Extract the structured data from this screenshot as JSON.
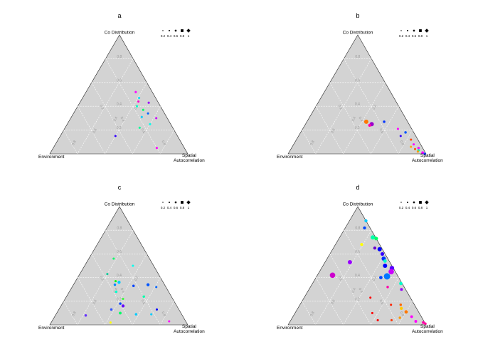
{
  "chart_data": [
    {
      "type": "scatter",
      "title": "a",
      "vertex_labels": {
        "top": "Co Distribution",
        "left": "Environment",
        "right_line1": "Spatial",
        "right_line2": "Autocorrelation"
      },
      "tick_labels": [
        "0.8",
        "0.6",
        "0.4",
        "0.2"
      ],
      "legend": {
        "labels": [
          "0.2",
          "0.4",
          "0.6",
          "0.8",
          "1"
        ],
        "sizes": [
          0.2,
          0.4,
          0.6,
          0.8,
          1.0
        ]
      },
      "points": [
        {
          "co": 0.52,
          "env": 0.12,
          "sp": 0.36,
          "size": 0.15,
          "color": "#ff00ff"
        },
        {
          "co": 0.47,
          "env": 0.12,
          "sp": 0.41,
          "size": 0.15,
          "color": "#00e5ff"
        },
        {
          "co": 0.44,
          "env": 0.14,
          "sp": 0.42,
          "size": 0.15,
          "color": "#ff00cc"
        },
        {
          "co": 0.43,
          "env": 0.07,
          "sp": 0.5,
          "size": 0.15,
          "color": "#9900ff"
        },
        {
          "co": 0.4,
          "env": 0.17,
          "sp": 0.43,
          "size": 0.15,
          "color": "#00ffcc"
        },
        {
          "co": 0.37,
          "env": 0.14,
          "sp": 0.49,
          "size": 0.15,
          "color": "#00ff66"
        },
        {
          "co": 0.34,
          "env": 0.12,
          "sp": 0.54,
          "size": 0.15,
          "color": "#0066ff"
        },
        {
          "co": 0.31,
          "env": 0.18,
          "sp": 0.51,
          "size": 0.15,
          "color": "#00ccff"
        },
        {
          "co": 0.3,
          "env": 0.08,
          "sp": 0.62,
          "size": 0.15,
          "color": "#cc00ff"
        },
        {
          "co": 0.25,
          "env": 0.15,
          "sp": 0.6,
          "size": 0.15,
          "color": "#00ffee"
        },
        {
          "co": 0.22,
          "env": 0.24,
          "sp": 0.54,
          "size": 0.15,
          "color": "#00ff99"
        },
        {
          "co": 0.15,
          "env": 0.45,
          "sp": 0.4,
          "size": 0.15,
          "color": "#3300ff"
        },
        {
          "co": 0.05,
          "env": 0.2,
          "sp": 0.75,
          "size": 0.15,
          "color": "#ff00ff"
        }
      ]
    },
    {
      "type": "scatter",
      "title": "b",
      "vertex_labels": {
        "top": "Co Distribution",
        "left": "Environment",
        "right_line1": "Spatial",
        "right_line2": "Autocorrelation"
      },
      "tick_labels": [
        "0.8",
        "0.6",
        "0.4",
        "0.2"
      ],
      "legend": {
        "labels": [
          "0.2",
          "0.4",
          "0.6",
          "0.8",
          "1"
        ],
        "sizes": [
          0.2,
          0.4,
          0.6,
          0.8,
          1.0
        ]
      },
      "points": [
        {
          "co": 0.27,
          "env": 0.3,
          "sp": 0.43,
          "size": 0.5,
          "color": "#ff7700"
        },
        {
          "co": 0.25,
          "env": 0.27,
          "sp": 0.48,
          "size": 0.5,
          "color": "#9900cc"
        },
        {
          "co": 0.24,
          "env": 0.29,
          "sp": 0.47,
          "size": 0.3,
          "color": "#ff00aa"
        },
        {
          "co": 0.27,
          "env": 0.17,
          "sp": 0.56,
          "size": 0.2,
          "color": "#0033ff"
        },
        {
          "co": 0.21,
          "env": 0.1,
          "sp": 0.69,
          "size": 0.15,
          "color": "#ff00ff"
        },
        {
          "co": 0.18,
          "env": 0.06,
          "sp": 0.76,
          "size": 0.2,
          "color": "#0055ff"
        },
        {
          "co": 0.15,
          "env": 0.11,
          "sp": 0.74,
          "size": 0.15,
          "color": "#3300ff"
        },
        {
          "co": 0.12,
          "env": 0.05,
          "sp": 0.83,
          "size": 0.15,
          "color": "#ff4400"
        },
        {
          "co": 0.08,
          "env": 0.05,
          "sp": 0.87,
          "size": 0.15,
          "color": "#ff00ff"
        },
        {
          "co": 0.06,
          "env": 0.08,
          "sp": 0.86,
          "size": 0.15,
          "color": "#ffaa00"
        },
        {
          "co": 0.05,
          "env": 0.03,
          "sp": 0.92,
          "size": 0.2,
          "color": "#ff00ff"
        },
        {
          "co": 0.04,
          "env": 0.06,
          "sp": 0.9,
          "size": 0.15,
          "color": "#ff5500"
        },
        {
          "co": 0.03,
          "env": 0.04,
          "sp": 0.93,
          "size": 0.2,
          "color": "#00ffaa"
        },
        {
          "co": 0.02,
          "env": 0.05,
          "sp": 0.93,
          "size": 0.15,
          "color": "#ff9900"
        },
        {
          "co": 0.01,
          "env": 0.02,
          "sp": 0.97,
          "size": 0.25,
          "color": "#ff00ff"
        },
        {
          "co": 0.0,
          "env": 0.01,
          "sp": 0.99,
          "size": 0.2,
          "color": "#0033ff"
        }
      ]
    },
    {
      "type": "scatter",
      "title": "c",
      "vertex_labels": {
        "top": "Co Distribution",
        "left": "Environment",
        "right_line1": "Spatial",
        "right_line2": "Autocorrelation"
      },
      "tick_labels": [
        "0.8",
        "0.6",
        "0.4",
        "0.2"
      ],
      "legend": {
        "labels": [
          "0.2",
          "0.4",
          "0.6",
          "0.8",
          "1"
        ],
        "sizes": [
          0.2,
          0.4,
          0.6,
          0.8,
          1.0
        ]
      },
      "points": [
        {
          "co": 0.56,
          "env": 0.26,
          "sp": 0.18,
          "size": 0.15,
          "color": "#00ff66"
        },
        {
          "co": 0.5,
          "env": 0.15,
          "sp": 0.35,
          "size": 0.15,
          "color": "#00ffee"
        },
        {
          "co": 0.43,
          "env": 0.37,
          "sp": 0.2,
          "size": 0.15,
          "color": "#00cc99"
        },
        {
          "co": 0.37,
          "env": 0.34,
          "sp": 0.29,
          "size": 0.15,
          "color": "#00ff00"
        },
        {
          "co": 0.36,
          "env": 0.32,
          "sp": 0.32,
          "size": 0.3,
          "color": "#00ccff"
        },
        {
          "co": 0.34,
          "env": 0.36,
          "sp": 0.3,
          "size": 0.2,
          "color": "#0088ff"
        },
        {
          "co": 0.33,
          "env": 0.23,
          "sp": 0.44,
          "size": 0.2,
          "color": "#0044ff"
        },
        {
          "co": 0.34,
          "env": 0.12,
          "sp": 0.54,
          "size": 0.3,
          "color": "#0055ff"
        },
        {
          "co": 0.32,
          "env": 0.07,
          "sp": 0.61,
          "size": 0.15,
          "color": "#0066ff"
        },
        {
          "co": 0.28,
          "env": 0.38,
          "sp": 0.34,
          "size": 0.2,
          "color": "#00ffcc"
        },
        {
          "co": 0.24,
          "env": 0.2,
          "sp": 0.56,
          "size": 0.2,
          "color": "#00ffaa"
        },
        {
          "co": 0.22,
          "env": 0.36,
          "sp": 0.42,
          "size": 0.15,
          "color": "#33ff33"
        },
        {
          "co": 0.18,
          "env": 0.4,
          "sp": 0.42,
          "size": 0.2,
          "color": "#0044ff"
        },
        {
          "co": 0.16,
          "env": 0.39,
          "sp": 0.45,
          "size": 0.3,
          "color": "#6600ff"
        },
        {
          "co": 0.13,
          "env": 0.49,
          "sp": 0.38,
          "size": 0.2,
          "color": "#3355ff"
        },
        {
          "co": 0.1,
          "env": 0.44,
          "sp": 0.46,
          "size": 0.25,
          "color": "#00ff66"
        },
        {
          "co": 0.13,
          "env": 0.16,
          "sp": 0.71,
          "size": 0.15,
          "color": "#0000ff"
        },
        {
          "co": 0.08,
          "env": 0.7,
          "sp": 0.22,
          "size": 0.2,
          "color": "#6633ff"
        },
        {
          "co": 0.09,
          "env": 0.22,
          "sp": 0.69,
          "size": 0.15,
          "color": "#00ccff"
        },
        {
          "co": 0.09,
          "env": 0.33,
          "sp": 0.58,
          "size": 0.2,
          "color": "#00ccff"
        },
        {
          "co": 0.03,
          "env": 0.12,
          "sp": 0.85,
          "size": 0.15,
          "color": "#ff00ff"
        },
        {
          "co": 0.02,
          "env": 0.55,
          "sp": 0.43,
          "size": 0.15,
          "color": "#ffff00"
        }
      ]
    },
    {
      "type": "scatter",
      "title": "d",
      "vertex_labels": {
        "top": "Co Distribution",
        "left": "Environment",
        "right_line1": "Spatial",
        "right_line2": "Autocorrelation"
      },
      "tick_labels": [
        "0.8",
        "0.6",
        "0.4",
        "0.2"
      ],
      "legend": {
        "labels": [
          "0.2",
          "0.4",
          "0.6",
          "0.8",
          "1"
        ],
        "sizes": [
          0.2,
          0.4,
          0.6,
          0.8,
          1.0
        ]
      },
      "points": [
        {
          "co": 0.88,
          "env": 0.0,
          "sp": 0.12,
          "size": 0.3,
          "color": "#00ccff"
        },
        {
          "co": 0.82,
          "env": 0.04,
          "sp": 0.14,
          "size": 0.3,
          "color": "#0044ff"
        },
        {
          "co": 0.74,
          "env": 0.02,
          "sp": 0.24,
          "size": 0.5,
          "color": "#00ffaa"
        },
        {
          "co": 0.73,
          "env": 0.0,
          "sp": 0.27,
          "size": 0.4,
          "color": "#00ff66"
        },
        {
          "co": 0.68,
          "env": 0.13,
          "sp": 0.19,
          "size": 0.3,
          "color": "#ffff00"
        },
        {
          "co": 0.65,
          "env": 0.05,
          "sp": 0.3,
          "size": 0.3,
          "color": "#6600cc"
        },
        {
          "co": 0.64,
          "env": 0.02,
          "sp": 0.34,
          "size": 0.5,
          "color": "#0000ff"
        },
        {
          "co": 0.6,
          "env": 0.02,
          "sp": 0.38,
          "size": 0.4,
          "color": "#3300ff"
        },
        {
          "co": 0.56,
          "env": 0.03,
          "sp": 0.41,
          "size": 0.5,
          "color": "#0033ff"
        },
        {
          "co": 0.54,
          "env": 0.03,
          "sp": 0.43,
          "size": 0.35,
          "color": "#00ffcc"
        },
        {
          "co": 0.53,
          "env": 0.29,
          "sp": 0.18,
          "size": 0.5,
          "color": "#9900ff"
        },
        {
          "co": 0.5,
          "env": 0.05,
          "sp": 0.45,
          "size": 0.5,
          "color": "#0000ff"
        },
        {
          "co": 0.48,
          "env": 0.01,
          "sp": 0.51,
          "size": 0.55,
          "color": "#5500ff"
        },
        {
          "co": 0.45,
          "env": 0.03,
          "sp": 0.52,
          "size": 0.7,
          "color": "#cc00ff"
        },
        {
          "co": 0.42,
          "env": 0.47,
          "sp": 0.11,
          "size": 0.7,
          "color": "#cc00cc"
        },
        {
          "co": 0.41,
          "env": 0.08,
          "sp": 0.51,
          "size": 0.85,
          "color": "#0077ff"
        },
        {
          "co": 0.4,
          "env": 0.13,
          "sp": 0.47,
          "size": 0.35,
          "color": "#0044ff"
        },
        {
          "co": 0.35,
          "env": 0.01,
          "sp": 0.64,
          "size": 0.35,
          "color": "#00ffcc"
        },
        {
          "co": 0.3,
          "env": 0.03,
          "sp": 0.67,
          "size": 0.25,
          "color": "#9900ff"
        },
        {
          "co": 0.32,
          "env": 0.12,
          "sp": 0.56,
          "size": 0.2,
          "color": "#ff00aa"
        },
        {
          "co": 0.23,
          "env": 0.29,
          "sp": 0.48,
          "size": 0.15,
          "color": "#ff0000"
        },
        {
          "co": 0.17,
          "env": 0.17,
          "sp": 0.66,
          "size": 0.15,
          "color": "#ff2200"
        },
        {
          "co": 0.17,
          "env": 0.1,
          "sp": 0.73,
          "size": 0.2,
          "color": "#ff6600"
        },
        {
          "co": 0.14,
          "env": 0.11,
          "sp": 0.75,
          "size": 0.3,
          "color": "#ffcc00"
        },
        {
          "co": 0.11,
          "env": 0.09,
          "sp": 0.8,
          "size": 0.35,
          "color": "#ff7700"
        },
        {
          "co": 0.1,
          "env": 0.34,
          "sp": 0.56,
          "size": 0.15,
          "color": "#ff0000"
        },
        {
          "co": 0.07,
          "env": 0.07,
          "sp": 0.86,
          "size": 0.25,
          "color": "#ff00ff"
        },
        {
          "co": 0.06,
          "env": 0.16,
          "sp": 0.78,
          "size": 0.2,
          "color": "#ff9900"
        },
        {
          "co": 0.04,
          "env": 0.33,
          "sp": 0.63,
          "size": 0.15,
          "color": "#ff0000"
        },
        {
          "co": 0.04,
          "env": 0.23,
          "sp": 0.73,
          "size": 0.15,
          "color": "#ff3300"
        },
        {
          "co": 0.03,
          "env": 0.06,
          "sp": 0.91,
          "size": 0.25,
          "color": "#ff00ff"
        },
        {
          "co": 0.02,
          "env": 0.01,
          "sp": 0.97,
          "size": 0.25,
          "color": "#ff00aa"
        },
        {
          "co": 0.01,
          "env": 0.0,
          "sp": 0.99,
          "size": 0.2,
          "color": "#ff0099"
        }
      ]
    }
  ]
}
